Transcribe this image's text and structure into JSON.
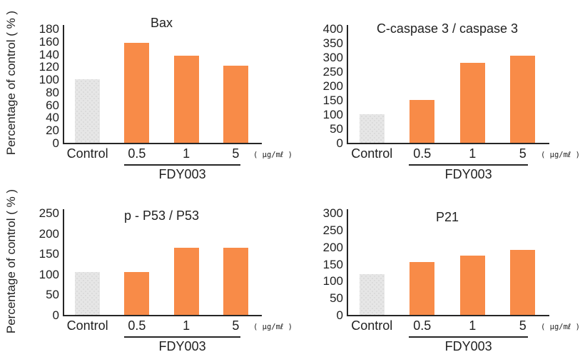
{
  "figure": {
    "ylabel": "Percentage of control ( % )",
    "x_categories": [
      "Control",
      "0.5",
      "1",
      "5"
    ],
    "unit_label": "( μg/mℓ )",
    "group_label": "FDY003",
    "colors": {
      "treatment_bar": "#f88b48",
      "control_bar": "#e6e6e6",
      "axis": "#262626",
      "text": "#1f1f1f"
    }
  },
  "chart_data": [
    {
      "type": "bar",
      "title": "Bax",
      "categories": [
        "Control",
        "0.5",
        "1",
        "5"
      ],
      "values": [
        100,
        157,
        137,
        122
      ],
      "series": [
        {
          "name": "Percentage of control (%)",
          "values": [
            100,
            157,
            137,
            122
          ]
        }
      ],
      "xlabel": "FDY003 concentration (μg/mℓ)",
      "ylabel": "Percentage of control ( % )",
      "ylim": [
        0,
        180
      ],
      "ystep": 20,
      "yticks": [
        180,
        160,
        140,
        120,
        100,
        80,
        60,
        40,
        20,
        0
      ],
      "grid": "off",
      "legend": "none"
    },
    {
      "type": "bar",
      "title": "C-caspase 3 / caspase 3",
      "categories": [
        "Control",
        "0.5",
        "1",
        "5"
      ],
      "values": [
        100,
        150,
        280,
        305
      ],
      "series": [
        {
          "name": "Percentage of control (%)",
          "values": [
            100,
            150,
            280,
            305
          ]
        }
      ],
      "xlabel": "FDY003 concentration (μg/mℓ)",
      "ylabel": "Percentage of control ( % )",
      "ylim": [
        0,
        400
      ],
      "ystep": 50,
      "yticks": [
        400,
        350,
        300,
        250,
        200,
        150,
        100,
        50,
        0
      ],
      "grid": "off",
      "legend": "none"
    },
    {
      "type": "bar",
      "title": "p - P53 / P53",
      "categories": [
        "Control",
        "0.5",
        "1",
        "5"
      ],
      "values": [
        105,
        105,
        165,
        165
      ],
      "series": [
        {
          "name": "Percentage of control (%)",
          "values": [
            105,
            105,
            165,
            165
          ]
        }
      ],
      "xlabel": "FDY003 concentration (μg/mℓ)",
      "ylabel": "Percentage of control ( % )",
      "ylim": [
        0,
        250
      ],
      "ystep": 50,
      "yticks": [
        250,
        200,
        150,
        100,
        50,
        0
      ],
      "grid": "off",
      "legend": "none"
    },
    {
      "type": "bar",
      "title": "P21",
      "categories": [
        "Control",
        "0.5",
        "1",
        "5"
      ],
      "values": [
        120,
        155,
        175,
        190
      ],
      "series": [
        {
          "name": "Percentage of control (%)",
          "values": [
            120,
            155,
            175,
            190
          ]
        }
      ],
      "xlabel": "FDY003 concentration (μg/mℓ)",
      "ylabel": "Percentage of control ( % )",
      "ylim": [
        0,
        300
      ],
      "ystep": 50,
      "yticks": [
        300,
        250,
        200,
        150,
        100,
        50,
        0
      ],
      "grid": "off",
      "legend": "none"
    }
  ]
}
